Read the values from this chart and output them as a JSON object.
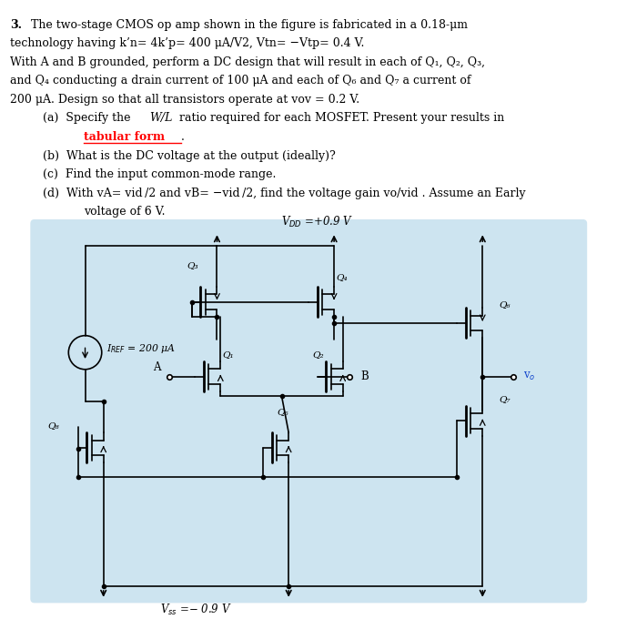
{
  "bg_color": "#ffffff",
  "circuit_bg": "#cde4f0",
  "text_color": "#000000",
  "vdd_label": "V_{DD} =+0.9 V",
  "vss_label": "V_{ss} =- 0.9 V",
  "iref_label": "I_{REF} = 200 μA"
}
